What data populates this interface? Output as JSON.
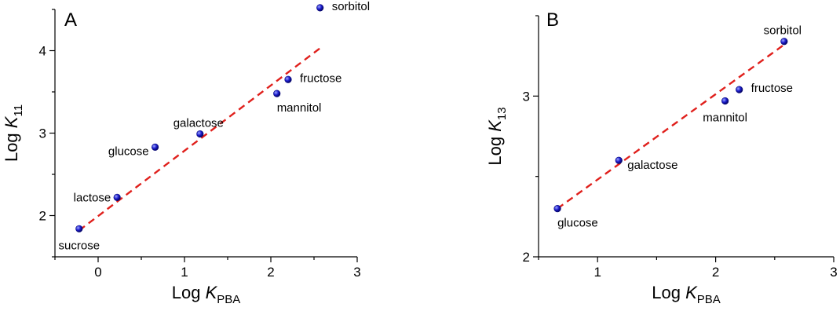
{
  "chart_data": [
    {
      "type": "scatter",
      "panel_label": "A",
      "xlabel": {
        "base": "Log ",
        "italic": "K",
        "sub": "PBA"
      },
      "ylabel": {
        "base": "Log ",
        "italic": "K",
        "sub": "11"
      },
      "xlim": [
        -0.5,
        3
      ],
      "ylim": [
        1.5,
        4.5
      ],
      "xticks": [
        0,
        1,
        2,
        3
      ],
      "yticks": [
        2,
        3,
        4
      ],
      "point_color": "#1a1acc",
      "fit_color": "#e0201c",
      "grid": false,
      "points": [
        {
          "label": "sucrose",
          "x": -0.22,
          "y": 1.84,
          "label_pos": "below"
        },
        {
          "label": "lactose",
          "x": 0.22,
          "y": 2.22,
          "label_pos": "left"
        },
        {
          "label": "glucose",
          "x": 0.66,
          "y": 2.83,
          "label_pos": "left-below"
        },
        {
          "label": "galactose",
          "x": 1.18,
          "y": 2.99,
          "label_pos": "above"
        },
        {
          "label": "mannitol",
          "x": 2.07,
          "y": 3.48,
          "label_pos": "below-right"
        },
        {
          "label": "fructose",
          "x": 2.2,
          "y": 3.65,
          "label_pos": "right"
        },
        {
          "label": "sorbitol",
          "x": 2.57,
          "y": 4.52,
          "label_pos": "right"
        }
      ],
      "fit_line": {
        "x": [
          -0.22,
          2.57
        ],
        "y": [
          1.82,
          4.03
        ],
        "style": "dashed"
      }
    },
    {
      "type": "scatter",
      "panel_label": "B",
      "xlabel": {
        "base": "Log ",
        "italic": "K",
        "sub": "PBA"
      },
      "ylabel": {
        "base": "Log ",
        "italic": "K",
        "sub": "13"
      },
      "xlim": [
        0.5,
        3
      ],
      "ylim": [
        2,
        3.5
      ],
      "xticks": [
        1,
        2,
        3
      ],
      "yticks": [
        2,
        3
      ],
      "point_color": "#1a1acc",
      "fit_color": "#e0201c",
      "grid": false,
      "points": [
        {
          "label": "glucose",
          "x": 0.66,
          "y": 2.3,
          "label_pos": "below-right"
        },
        {
          "label": "galactose",
          "x": 1.18,
          "y": 2.6,
          "label_pos": "right-below"
        },
        {
          "label": "mannitol",
          "x": 2.08,
          "y": 2.97,
          "label_pos": "below"
        },
        {
          "label": "fructose",
          "x": 2.2,
          "y": 3.04,
          "label_pos": "right"
        },
        {
          "label": "sorbitol",
          "x": 2.58,
          "y": 3.34,
          "label_pos": "above"
        }
      ],
      "fit_line": {
        "x": [
          0.66,
          2.58
        ],
        "y": [
          2.3,
          3.32
        ],
        "style": "dashed"
      }
    }
  ]
}
